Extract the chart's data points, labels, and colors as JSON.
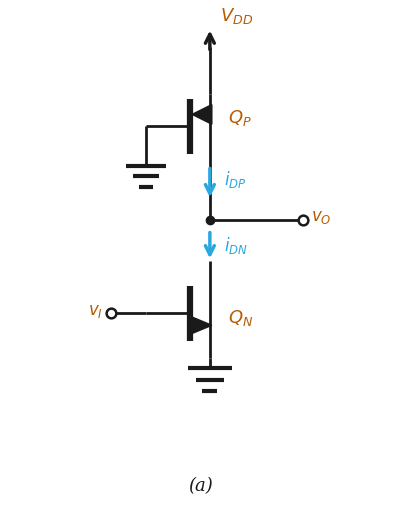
{
  "fig_width": 4.02,
  "fig_height": 5.07,
  "dpi": 100,
  "bg_color": "#ffffff",
  "line_color": "#1a1a1a",
  "blue_color": "#29a8e0",
  "orange_color": "#b85c00",
  "label_a": "(a)",
  "vdd_label": "$V_{DD}$",
  "qp_label": "$Q_P$",
  "qn_label": "$Q_N$",
  "idp_label": "$i_{DP}$",
  "idn_label": "$i_{DN}$",
  "vo_label": "$v_O$",
  "vi_label": "$v_I$"
}
